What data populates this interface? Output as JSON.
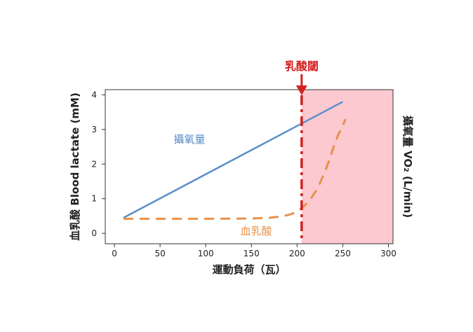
{
  "chart_data": {
    "type": "line",
    "title": "",
    "xlabel": "運動負荷（瓦）",
    "ylabel_left": "血乳酸 Blood lactate (mM)",
    "ylabel_right": "攝氧量 VO₂ (L/min)",
    "xlim": [
      -10,
      305
    ],
    "ylim": [
      -0.3,
      4.15
    ],
    "x_ticks": [
      0,
      50,
      100,
      150,
      200,
      250,
      300
    ],
    "y_ticks": [
      0,
      1,
      2,
      3,
      4
    ],
    "grid": false,
    "series": [
      {
        "name": "攝氧量",
        "style": "solid",
        "color": "#5b8ec9",
        "x": [
          10,
          250
        ],
        "y": [
          0.45,
          3.8
        ]
      },
      {
        "name": "血乳酸",
        "style": "dashed",
        "color": "#e8914a",
        "x": [
          10,
          50,
          100,
          150,
          170,
          180,
          190,
          195,
          200,
          205,
          210,
          215,
          220,
          225,
          230,
          235,
          240,
          245,
          250,
          253
        ],
        "y": [
          0.42,
          0.42,
          0.42,
          0.43,
          0.45,
          0.48,
          0.53,
          0.57,
          0.63,
          0.72,
          0.85,
          1.0,
          1.2,
          1.45,
          1.75,
          2.1,
          2.5,
          2.85,
          3.1,
          3.3
        ]
      }
    ],
    "threshold": {
      "label": "乳酸閾",
      "x": 205,
      "color": "#d42020",
      "shade_color": "#fbc9cf"
    }
  }
}
